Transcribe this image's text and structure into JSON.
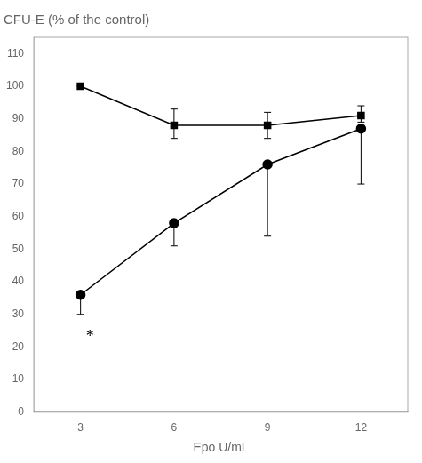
{
  "chart_data": {
    "type": "line",
    "title": "CFU-E (% of the control)",
    "xlabel": "Epo U/mL",
    "x": [
      3,
      6,
      9,
      12
    ],
    "series": [
      {
        "color": "#000000",
        "marker": "square",
        "values": [
          100,
          88,
          88,
          91
        ],
        "error_low": [
          0,
          4,
          4,
          2
        ],
        "error_high": [
          0,
          5,
          4,
          3
        ]
      },
      {
        "color": "#000000",
        "marker": "circle",
        "values": [
          36,
          58,
          76,
          87
        ],
        "error_low": [
          6,
          7,
          22,
          17
        ],
        "error_high": [
          0,
          0,
          0,
          0
        ]
      }
    ],
    "xlim": [
      1.5,
      13.5
    ],
    "xticks": [
      3,
      6,
      9,
      12
    ],
    "ylim": [
      0,
      115
    ],
    "yticks": [
      0,
      10,
      20,
      30,
      40,
      50,
      60,
      70,
      80,
      90,
      100,
      110
    ],
    "grid": false,
    "annotations": [
      {
        "text": "*",
        "x": 3.3,
        "y": 23
      }
    ]
  }
}
